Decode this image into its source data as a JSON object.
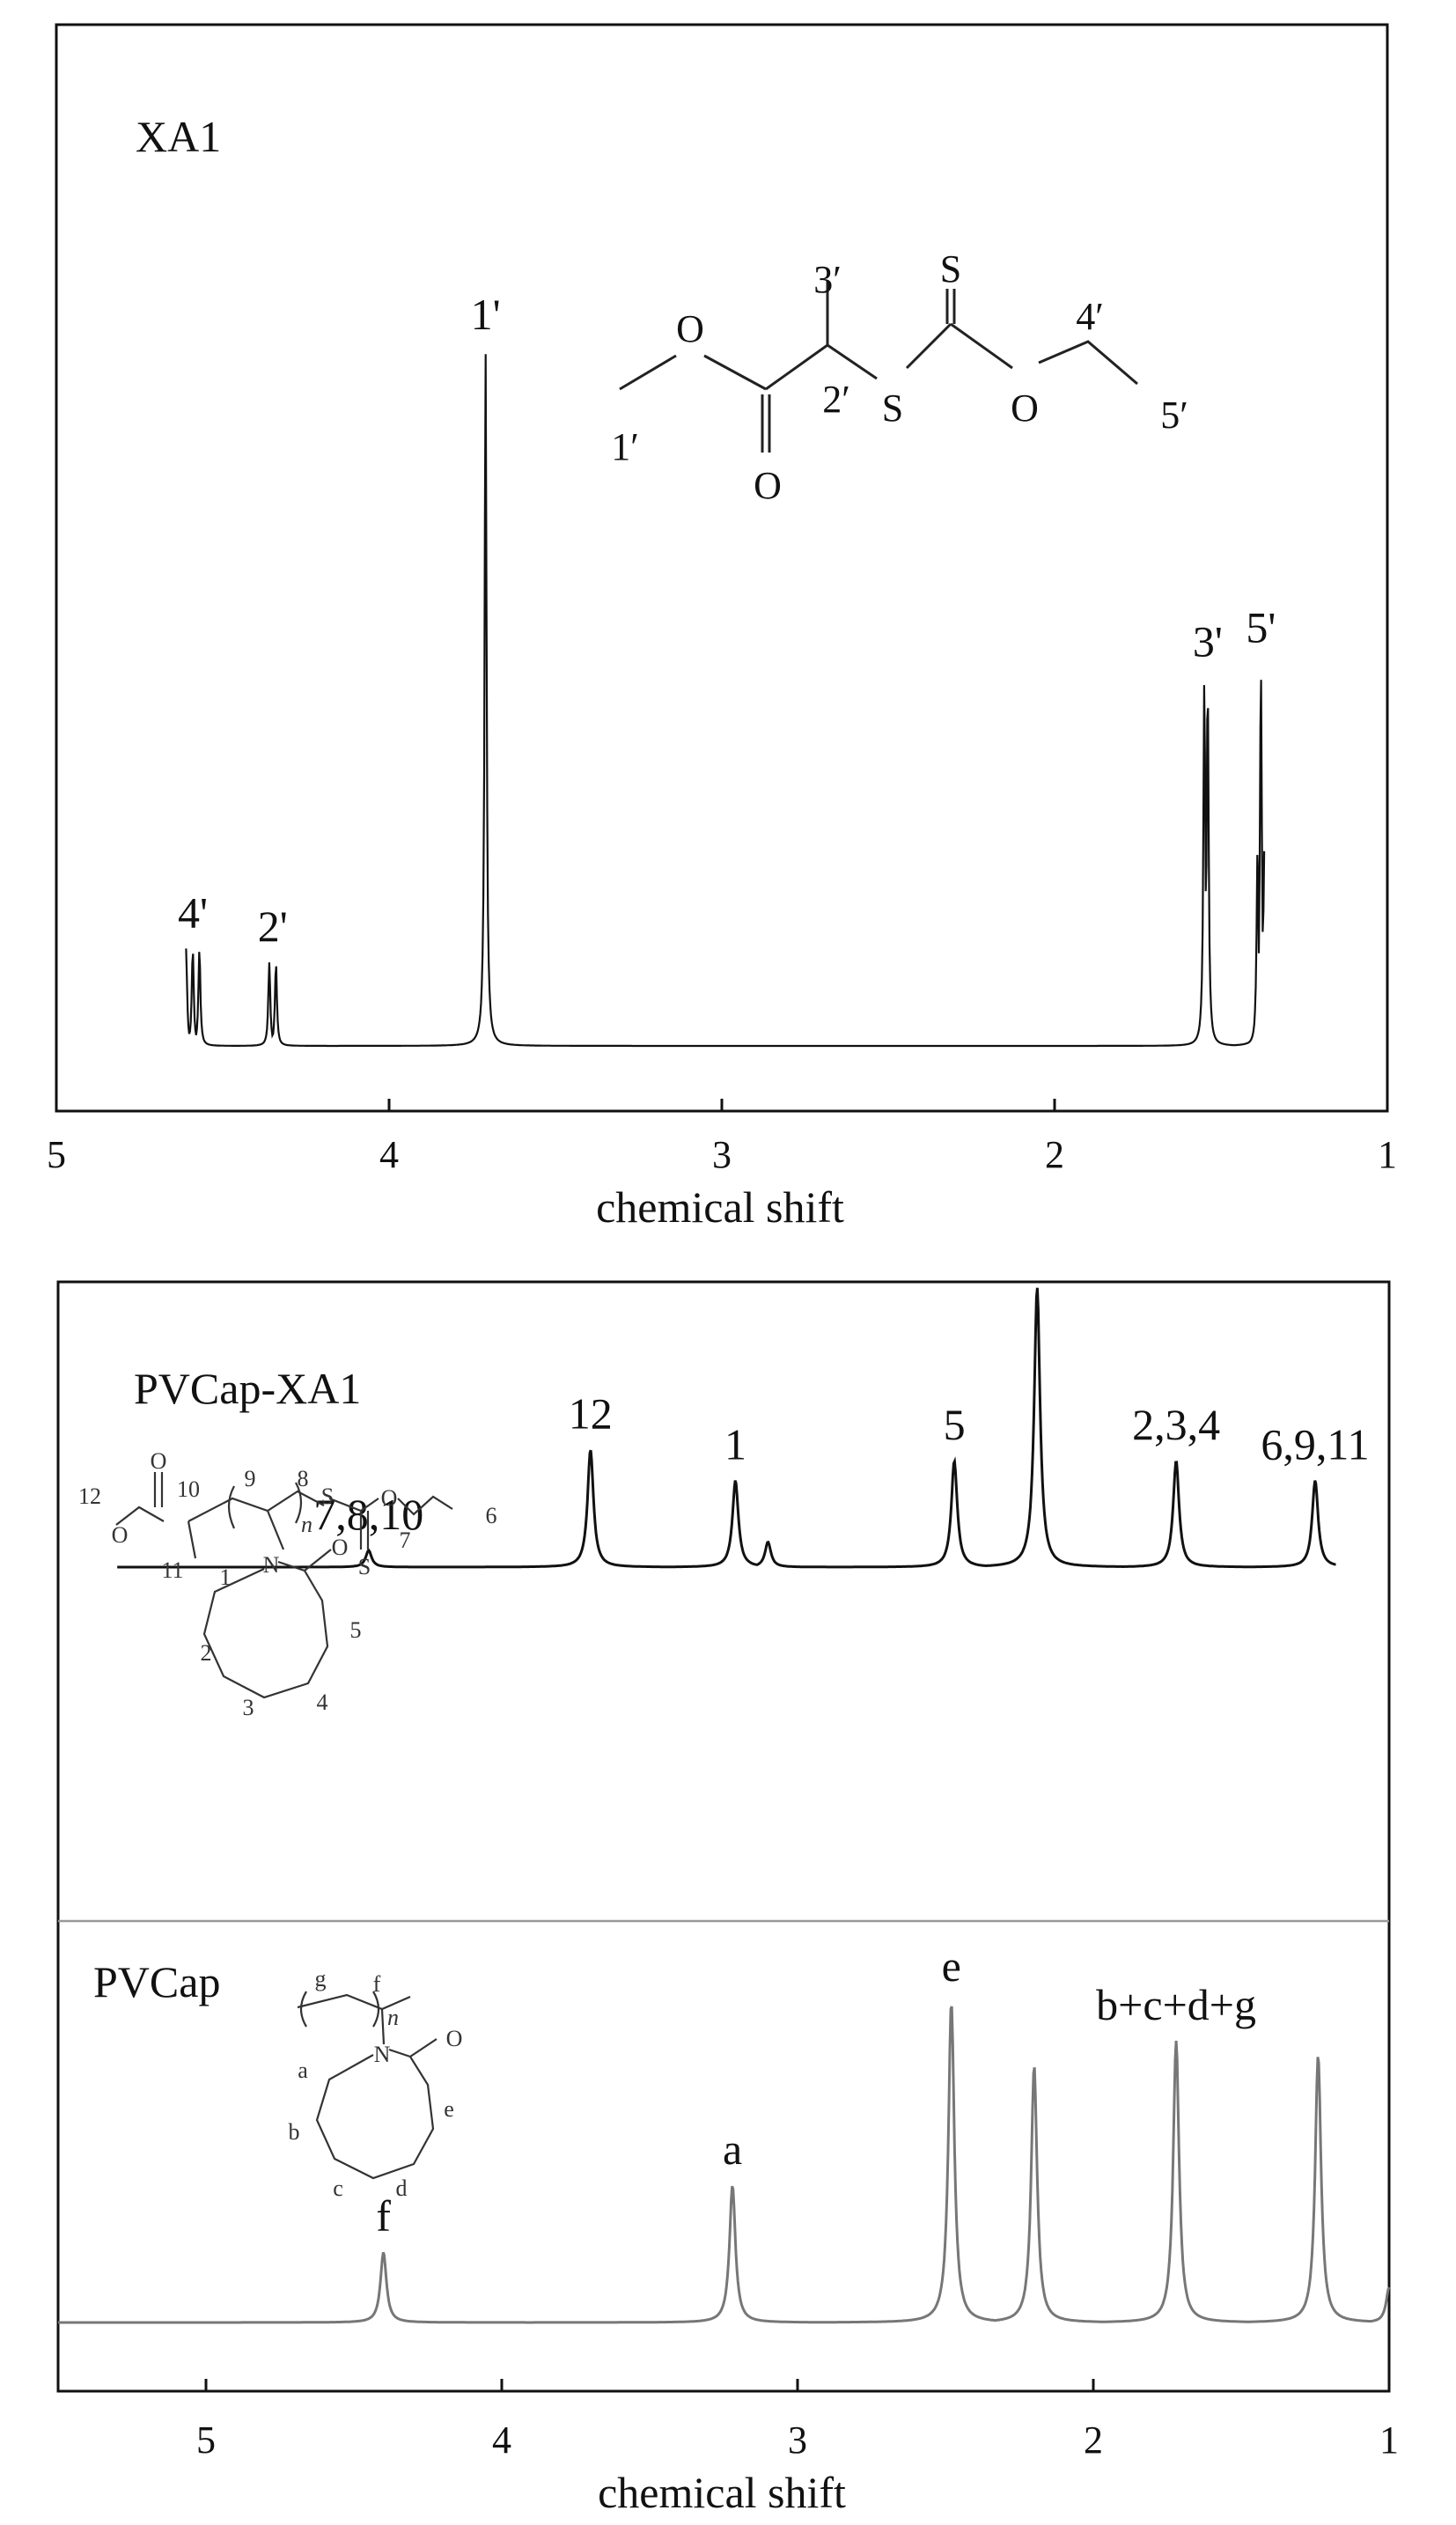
{
  "chart_data": [
    {
      "type": "line",
      "title": "XA1",
      "xlabel": "chemical shift",
      "xlim": [
        5,
        1
      ],
      "xticks": [
        5,
        4,
        3,
        2,
        1
      ],
      "structure_labels": [
        "O",
        "O",
        "S",
        "S",
        "O",
        "1′",
        "2′",
        "3′",
        "4′",
        "5′"
      ],
      "peaks": [
        {
          "label": "4'",
          "x": 4.59
        },
        {
          "label": "2'",
          "x": 4.35
        },
        {
          "label": "1'",
          "x": 3.71
        },
        {
          "label": "3'",
          "x": 1.54
        },
        {
          "label": "5'",
          "x": 1.38
        }
      ],
      "series": [
        {
          "values": [
            [
              4.61,
              0.14
            ],
            [
              4.59,
              0.14
            ],
            [
              4.57,
              0.14
            ],
            [
              4.36,
              0.12
            ],
            [
              4.34,
              0.12
            ],
            [
              3.71,
              1.0
            ],
            [
              1.55,
              0.53
            ],
            [
              1.54,
              0.53
            ],
            [
              1.39,
              0.29
            ],
            [
              1.38,
              0.55
            ],
            [
              1.37,
              0.28
            ]
          ]
        }
      ]
    },
    {
      "type": "line",
      "title": "PVCap-XA1",
      "xlabel": "",
      "xlim": [
        5.5,
        1
      ],
      "structure_labels": [
        "O",
        "O",
        "S",
        "O",
        "S",
        "O",
        "N",
        "n",
        "1",
        "2",
        "3",
        "4",
        "5",
        "6",
        "7",
        "8",
        "9",
        "10",
        "11",
        "12"
      ],
      "peaks": [
        {
          "label": "7,8,10",
          "x": 4.45
        },
        {
          "label": "12",
          "x": 3.7
        },
        {
          "label": "1",
          "x": 3.21
        },
        {
          "label": "5",
          "x": 2.47
        },
        {
          "label": "2,3,4",
          "x": 1.72
        },
        {
          "label": "6,9,11",
          "x": 1.25
        }
      ],
      "series": [
        {
          "values": [
            [
              5.3,
              0.0
            ],
            [
              4.45,
              0.06
            ],
            [
              3.7,
              0.42
            ],
            [
              3.21,
              0.31
            ],
            [
              3.1,
              0.09
            ],
            [
              2.47,
              0.38
            ],
            [
              2.19,
              1.0
            ],
            [
              1.72,
              0.38
            ],
            [
              1.25,
              0.31
            ],
            [
              1.18,
              0.01
            ]
          ]
        }
      ]
    },
    {
      "type": "line",
      "title": "PVCap",
      "xlabel": "chemical shift",
      "xlim": [
        5.5,
        1
      ],
      "xticks": [
        5,
        4,
        3,
        2,
        1
      ],
      "structure_labels": [
        "O",
        "N",
        "n",
        "a",
        "b",
        "c",
        "d",
        "e",
        "f",
        "g"
      ],
      "peaks": [
        {
          "label": "f",
          "x": 4.4
        },
        {
          "label": "a",
          "x": 3.22
        },
        {
          "label": "e",
          "x": 2.48
        },
        {
          "label": "b+c+d+g",
          "x": 1.72
        }
      ],
      "series": [
        {
          "values": [
            [
              5.5,
              0.0
            ],
            [
              4.4,
              0.2
            ],
            [
              3.22,
              0.39
            ],
            [
              2.48,
              0.91
            ],
            [
              2.2,
              0.73
            ],
            [
              1.72,
              0.8
            ],
            [
              1.24,
              0.76
            ],
            [
              1.0,
              0.1
            ]
          ]
        }
      ]
    }
  ]
}
